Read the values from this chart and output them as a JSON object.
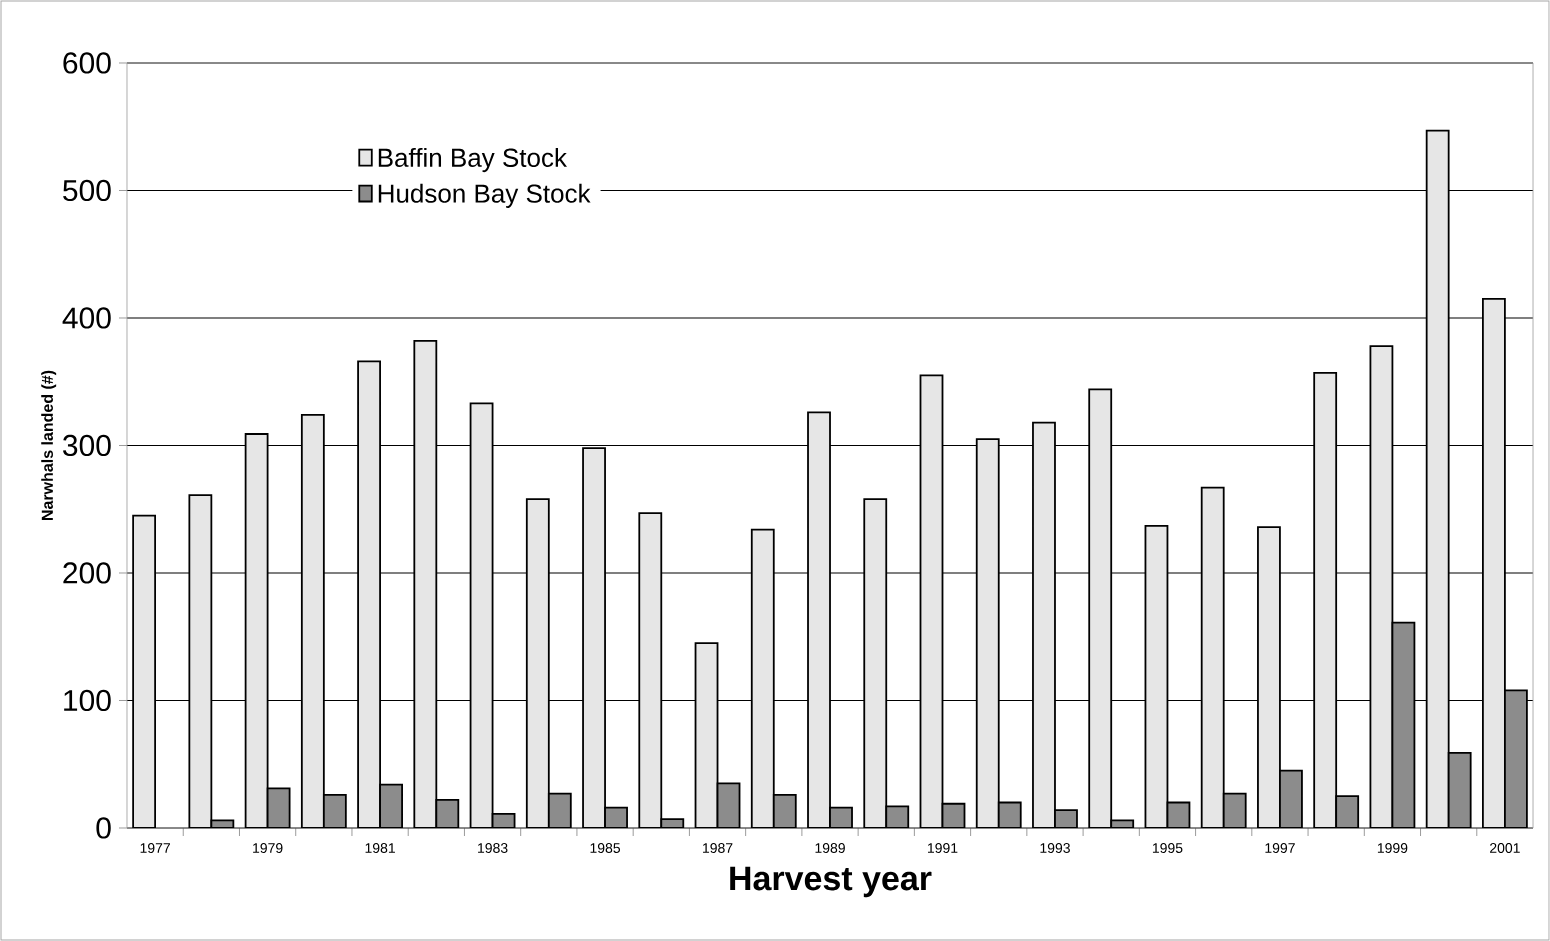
{
  "chart_data": {
    "type": "bar",
    "xlabel": "Harvest year",
    "ylabel": "Narwhals landed (#)",
    "categories": [
      "1977",
      null,
      "1979",
      null,
      "1981",
      null,
      "1983",
      null,
      "1985",
      null,
      "1987",
      null,
      "1989",
      null,
      "1991",
      null,
      "1993",
      null,
      "1995",
      null,
      "1997",
      null,
      "1999",
      null,
      "2001"
    ],
    "series": [
      {
        "name": "Baffin Bay Stock",
        "color": "#e6e6e6",
        "values": [
          245,
          261,
          309,
          324,
          366,
          382,
          333,
          258,
          298,
          247,
          145,
          234,
          326,
          258,
          355,
          305,
          318,
          344,
          237,
          267,
          236,
          357,
          378,
          547,
          415
        ]
      },
      {
        "name": "Hudson Bay Stock",
        "color": "#8c8c8c",
        "values": [
          null,
          6,
          31,
          26,
          34,
          22,
          11,
          27,
          16,
          7,
          35,
          26,
          16,
          17,
          19,
          20,
          14,
          6,
          20,
          27,
          45,
          25,
          161,
          59,
          108
        ]
      }
    ],
    "ylim": [
      0,
      600
    ],
    "yticks": [
      0,
      100,
      200,
      300,
      400,
      500,
      600
    ],
    "grid": "y",
    "legend": "top left"
  }
}
